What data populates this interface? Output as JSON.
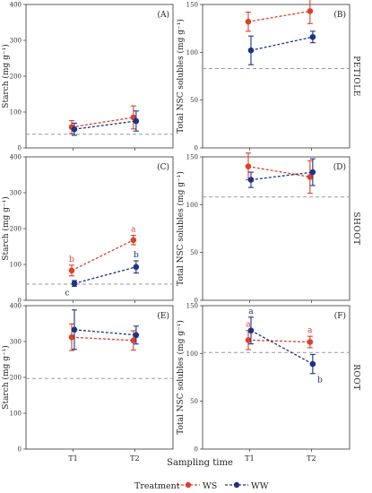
{
  "colors": {
    "WS": "#d9412b",
    "WW": "#1d3384",
    "reference": "#9a9a9a",
    "frame": "#333333"
  },
  "x_title": "Sampling time",
  "legend": {
    "title": "Treatment",
    "items": [
      "WS",
      "WW"
    ]
  },
  "chart_data": [
    {
      "type": "line",
      "panel_label": "(A)",
      "ylabel": "Starch (mg g⁻¹)",
      "ylim": [
        0,
        400
      ],
      "yticks": [
        0,
        100,
        200,
        300,
        400
      ],
      "x": [
        "T1",
        "T2"
      ],
      "reference_line": 38,
      "side_label": "",
      "series": [
        {
          "name": "WS",
          "values": [
            58,
            85
          ],
          "errors": [
            18,
            32
          ],
          "letters": [
            "",
            ""
          ]
        },
        {
          "name": "WW",
          "values": [
            52,
            75
          ],
          "errors": [
            17,
            28
          ],
          "letters": [
            "",
            ""
          ]
        }
      ]
    },
    {
      "type": "line",
      "panel_label": "(B)",
      "ylabel": "Total NSC solubles (mg g⁻¹)",
      "ylim": [
        0,
        150
      ],
      "yticks": [
        0,
        50,
        100,
        150
      ],
      "x": [
        "T1",
        "T2"
      ],
      "reference_line": 83,
      "side_label": "PETIOLE",
      "series": [
        {
          "name": "WS",
          "values": [
            132,
            143
          ],
          "errors": [
            10,
            13
          ],
          "letters": [
            "",
            ""
          ]
        },
        {
          "name": "WW",
          "values": [
            102,
            116
          ],
          "errors": [
            15,
            6
          ],
          "letters": [
            "",
            ""
          ]
        }
      ]
    },
    {
      "type": "line",
      "panel_label": "(C)",
      "ylabel": "Starch (mg g⁻¹)",
      "ylim": [
        0,
        400
      ],
      "yticks": [
        0,
        100,
        200,
        300,
        400
      ],
      "x": [
        "T1",
        "T2"
      ],
      "reference_line": 45,
      "side_label": "",
      "series": [
        {
          "name": "WS",
          "values": [
            83,
            168
          ],
          "errors": [
            15,
            13
          ],
          "letters": [
            "b",
            "a"
          ]
        },
        {
          "name": "WW",
          "values": [
            47,
            93
          ],
          "errors": [
            8,
            17
          ],
          "letters": [
            "c",
            "b"
          ]
        }
      ]
    },
    {
      "type": "line",
      "panel_label": "(D)",
      "ylabel": "Total NSC solubles (mg g⁻¹)",
      "ylim": [
        0,
        150
      ],
      "yticks": [
        0,
        50,
        100,
        150
      ],
      "x": [
        "T1",
        "T2"
      ],
      "reference_line": 108,
      "side_label": "SHOOT",
      "series": [
        {
          "name": "WS",
          "values": [
            140,
            129
          ],
          "errors": [
            14,
            17
          ],
          "letters": [
            "",
            ""
          ]
        },
        {
          "name": "WW",
          "values": [
            126,
            134
          ],
          "errors": [
            8,
            14
          ],
          "letters": [
            "",
            ""
          ]
        }
      ]
    },
    {
      "type": "line",
      "panel_label": "(E)",
      "ylabel": "Starch (mg g⁻¹)",
      "ylim": [
        0,
        400
      ],
      "yticks": [
        0,
        100,
        200,
        300,
        400
      ],
      "x": [
        "T1",
        "T2"
      ],
      "reference_line": 197,
      "side_label": "",
      "series": [
        {
          "name": "WS",
          "values": [
            312,
            303
          ],
          "errors": [
            37,
            27
          ],
          "letters": [
            "",
            ""
          ]
        },
        {
          "name": "WW",
          "values": [
            333,
            318
          ],
          "errors": [
            55,
            25
          ],
          "letters": [
            "",
            ""
          ]
        }
      ]
    },
    {
      "type": "line",
      "panel_label": "(F)",
      "ylabel": "Total NSC solubles (mg g⁻¹)",
      "ylim": [
        0,
        150
      ],
      "yticks": [
        0,
        50,
        100,
        150
      ],
      "x": [
        "T1",
        "T2"
      ],
      "reference_line": 101,
      "side_label": "ROOT",
      "series": [
        {
          "name": "WS",
          "values": [
            114,
            112
          ],
          "errors": [
            10,
            6
          ],
          "letters": [
            "a",
            "a"
          ]
        },
        {
          "name": "WW",
          "values": [
            124,
            89
          ],
          "errors": [
            14,
            10
          ],
          "letters": [
            "a",
            "b"
          ]
        }
      ]
    }
  ]
}
